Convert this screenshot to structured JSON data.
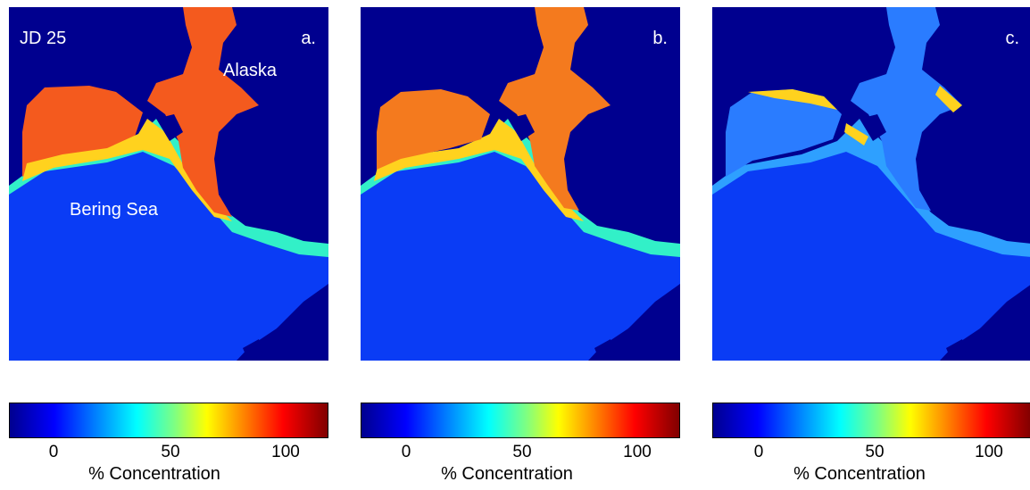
{
  "date_label": "JD 25",
  "panels": [
    {
      "label": "a.",
      "places": [
        "Alaska",
        "Bering Sea"
      ]
    },
    {
      "label": "b.",
      "places": []
    },
    {
      "label": "c.",
      "places": []
    }
  ],
  "colorbar": {
    "ticks": [
      "0",
      "50",
      "100"
    ],
    "title": "% Concentration",
    "colors": [
      "#00008f",
      "#0000ff",
      "#0080ff",
      "#00ffff",
      "#80ff80",
      "#ffff00",
      "#ff8000",
      "#ff0000",
      "#800000"
    ]
  },
  "colors": {
    "land": "#00008f",
    "open_water": "#0a3cf5",
    "ice_high": "#f45a1e",
    "ice_mid": "#ffd21e",
    "ice_edge": "#32f0c8",
    "ice_low": "#2ea0ff"
  }
}
